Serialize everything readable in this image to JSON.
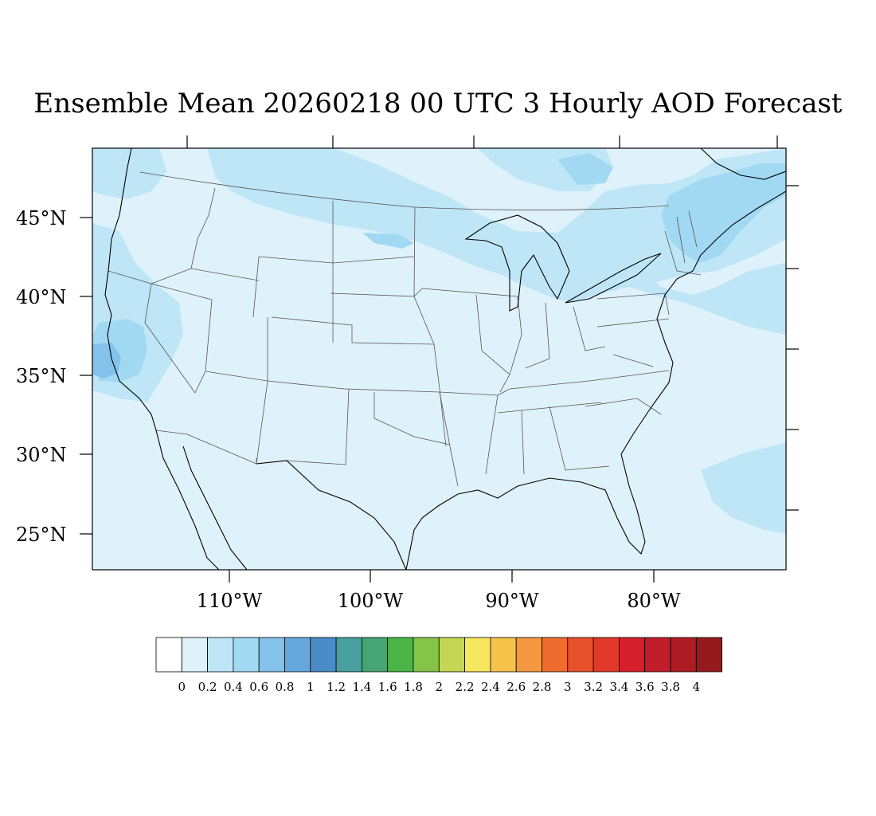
{
  "title": "Ensemble Mean 20260218 00 UTC 3 Hourly AOD Forecast",
  "map": {
    "projection": "Lambert conformal (CONUS)",
    "lon_range": [
      -119,
      -71
    ],
    "lat_range": [
      22.5,
      49.5
    ],
    "background_color": "#dff2fb",
    "lat_labels": [
      "45°N",
      "40°N",
      "35°N",
      "30°N",
      "25°N"
    ],
    "lon_labels": [
      "110°W",
      "100°W",
      "90°W",
      "80°W"
    ]
  },
  "colorbar": {
    "colors": [
      "#ffffff",
      "#dff2fb",
      "#bfe6f7",
      "#a1d9f3",
      "#83c2ea",
      "#66a8dc",
      "#4a8bc9",
      "#47a09f",
      "#47a474",
      "#4bb548",
      "#86c449",
      "#c4d755",
      "#f7e75f",
      "#f6c24a",
      "#f6993e",
      "#f06c2e",
      "#e9512b",
      "#e0392a",
      "#d5202c",
      "#c21d2a",
      "#ae1b22",
      "#941a1d"
    ],
    "labels": [
      "0",
      "0.2",
      "0.4",
      "0.6",
      "0.8",
      "1",
      "1.2",
      "1.4",
      "1.6",
      "1.8",
      "2",
      "2.2",
      "2.4",
      "2.6",
      "2.8",
      "3",
      "3.2",
      "3.4",
      "3.6",
      "3.8",
      "4"
    ]
  }
}
